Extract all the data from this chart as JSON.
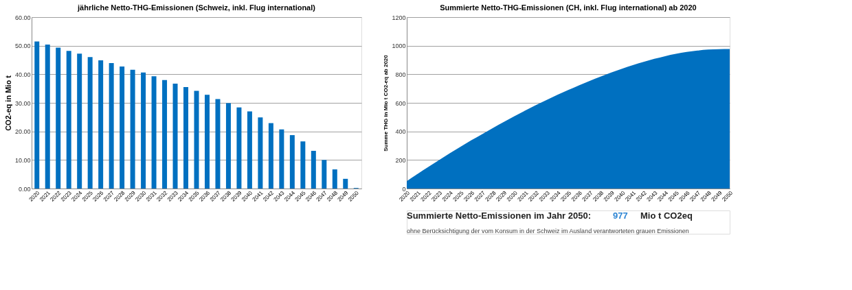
{
  "chart_data": [
    {
      "type": "bar",
      "title": "jährliche Netto-THG-Emissionen (Schweiz, inkl. Flug international)",
      "ylabel": "CO2-eq in Mio t",
      "categories": [
        "2020",
        "2021",
        "2022",
        "2023",
        "2024",
        "2025",
        "2026",
        "2027",
        "2028",
        "2029",
        "2030",
        "2031",
        "2032",
        "2033",
        "2034",
        "2035",
        "2036",
        "2037",
        "2038",
        "2039",
        "2040",
        "2041",
        "2042",
        "2043",
        "2044",
        "2045",
        "2046",
        "2047",
        "2048",
        "2049",
        "2050"
      ],
      "series": [
        {
          "color": "#0070c0",
          "values": [
            51.5,
            50.4,
            49.3,
            48.2,
            47.2,
            46.0,
            44.9,
            43.9,
            42.7,
            41.6,
            40.6,
            39.3,
            38.0,
            36.7,
            35.5,
            34.2,
            32.8,
            31.3,
            29.9,
            28.4,
            27.0,
            24.9,
            22.9,
            20.7,
            18.7,
            16.5,
            13.2,
            10.0,
            6.7,
            3.4,
            0.2
          ]
        }
      ],
      "ylim": [
        0,
        60
      ],
      "yticks": [
        {
          "value": 0,
          "label": "0.00"
        },
        {
          "value": 10,
          "label": "10.00"
        },
        {
          "value": 20,
          "label": "20.00"
        },
        {
          "value": 30,
          "label": "30.00"
        },
        {
          "value": 40,
          "label": "40.00"
        },
        {
          "value": 50,
          "label": "50.00"
        },
        {
          "value": 60,
          "label": "60.00"
        }
      ],
      "grid": "y",
      "legend": false
    },
    {
      "type": "area",
      "title": "Summierte Netto-THG-Emissionen (CH, inkl. Flug international) ab 2020",
      "ylabel": "Summe THG in Mio t CO2-eq ab 2020",
      "categories": [
        "2020",
        "2021",
        "2022",
        "2023",
        "2024",
        "2025",
        "2026",
        "2027",
        "2028",
        "2029",
        "2030",
        "2031",
        "2032",
        "2033",
        "2034",
        "2035",
        "2036",
        "2037",
        "2038",
        "2039",
        "2040",
        "2041",
        "2042",
        "2043",
        "2044",
        "2045",
        "2046",
        "2047",
        "2048",
        "2049",
        "2050"
      ],
      "series": [
        {
          "color": "#0070c0",
          "values": [
            52,
            102,
            151,
            199,
            247,
            293,
            338,
            381,
            424,
            466,
            506,
            546,
            584,
            620,
            656,
            690,
            723,
            754,
            784,
            812,
            839,
            864,
            887,
            908,
            927,
            943,
            956,
            966,
            973,
            976,
            977
          ]
        }
      ],
      "ylim": [
        0,
        1200
      ],
      "yticks": [
        0,
        200,
        400,
        600,
        800,
        1000,
        1200
      ],
      "grid": "y",
      "legend": false,
      "annotations": [
        "Summierte Netto-Emissionen im Jahr 2050:",
        "977",
        "Mio t CO2eq",
        "ohne Berücksichtigung der vom Konsum in der Schweiz im Ausland verantworteten grauen Emissionen"
      ]
    }
  ]
}
